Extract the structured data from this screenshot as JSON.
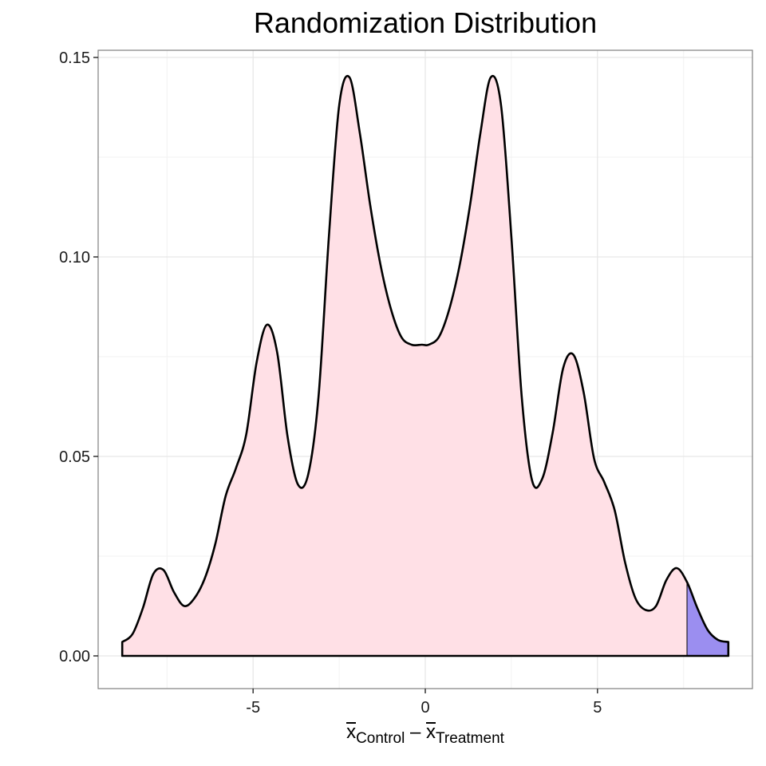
{
  "chart_data": {
    "type": "area",
    "title": "Randomization Distribution",
    "xlabel": {
      "symbol_1": "x",
      "subscript_1": "Control",
      "operator": "–",
      "symbol_2": "x",
      "subscript_2": "Treatment"
    },
    "ylabel": "",
    "xlim": [
      -9.5,
      9.5
    ],
    "ylim": [
      -0.0082,
      0.1518
    ],
    "x_ticks": [
      -5,
      0,
      5
    ],
    "x_tick_labels": [
      "-5",
      "0",
      "5"
    ],
    "y_ticks": [
      0.0,
      0.05,
      0.1,
      0.15
    ],
    "y_tick_labels": [
      "0.00",
      "0.05",
      "0.10",
      "0.15"
    ],
    "grid": true,
    "colors": {
      "fill": "#ffe0e6",
      "tail_fill": "#9b8ef0",
      "line": "#000000",
      "grid_major": "#e6e6e6",
      "grid_minor": "#f2f2f2",
      "panel_border": "#7f7f7f"
    },
    "series": [
      {
        "x": [
          -8.8,
          -8.5,
          -8.2,
          -7.9,
          -7.6,
          -7.3,
          -7.0,
          -6.7,
          -6.4,
          -6.1,
          -5.8,
          -5.5,
          -5.2,
          -4.9,
          -4.6,
          -4.3,
          -4.0,
          -3.7,
          -3.4,
          -3.1,
          -2.8,
          -2.5,
          -2.2,
          -1.9,
          -1.6,
          -1.3,
          -1.0,
          -0.7,
          -0.4,
          -0.1,
          0.1,
          0.4,
          0.7,
          1.0,
          1.3,
          1.6,
          1.9,
          2.2,
          2.5,
          2.8,
          3.1,
          3.4,
          3.7,
          4.0,
          4.3,
          4.6,
          4.9,
          5.2,
          5.5,
          5.8,
          6.1,
          6.4,
          6.7,
          7.0,
          7.3,
          7.6,
          7.9,
          8.2,
          8.5,
          8.8
        ],
        "y": [
          0.0035,
          0.0055,
          0.012,
          0.0205,
          0.0215,
          0.016,
          0.0125,
          0.0145,
          0.0195,
          0.028,
          0.04,
          0.047,
          0.0555,
          0.0735,
          0.083,
          0.076,
          0.055,
          0.043,
          0.0455,
          0.065,
          0.105,
          0.138,
          0.145,
          0.131,
          0.113,
          0.098,
          0.087,
          0.08,
          0.078,
          0.078,
          0.078,
          0.08,
          0.087,
          0.098,
          0.113,
          0.131,
          0.145,
          0.138,
          0.105,
          0.065,
          0.044,
          0.0445,
          0.056,
          0.072,
          0.0755,
          0.066,
          0.0495,
          0.0435,
          0.0365,
          0.0235,
          0.0145,
          0.0115,
          0.0125,
          0.019,
          0.022,
          0.0185,
          0.012,
          0.0065,
          0.004,
          0.0035
        ]
      }
    ],
    "shaded_tail_from_x": 7.6
  }
}
